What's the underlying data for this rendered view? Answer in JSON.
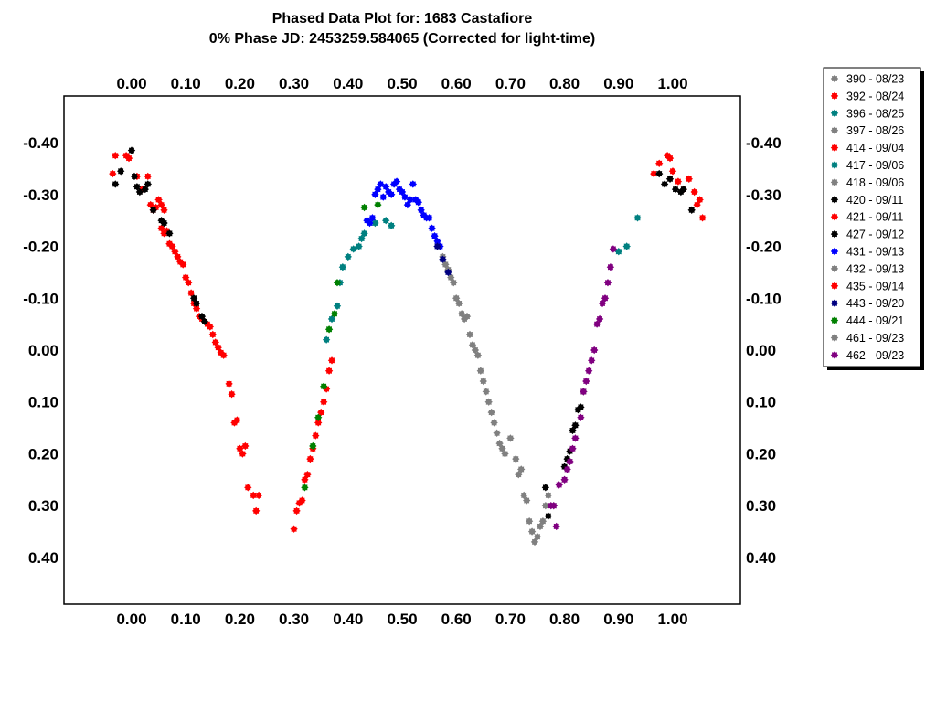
{
  "chart_data": {
    "type": "scatter",
    "title": "Phased Data Plot for: 1683 Castafiore",
    "subtitle": "0% Phase JD:  2453259.584065   (Corrected for light-time)",
    "xlabel": "",
    "ylabel": "",
    "xlim": [
      -0.125,
      1.125
    ],
    "ylim": [
      -0.49,
      0.49
    ],
    "y_inverted": true,
    "x_ticks": [
      0.0,
      0.1,
      0.2,
      0.3,
      0.4,
      0.5,
      0.6,
      0.7,
      0.8,
      0.9,
      1.0
    ],
    "x_tick_labels": [
      "0.00",
      "0.10",
      "0.20",
      "0.30",
      "0.40",
      "0.50",
      "0.60",
      "0.70",
      "0.80",
      "0.90",
      "1.00"
    ],
    "y_ticks": [
      -0.4,
      -0.3,
      -0.2,
      -0.1,
      0.0,
      0.1,
      0.2,
      0.3,
      0.4
    ],
    "y_tick_labels": [
      "-0.40",
      "-0.30",
      "-0.20",
      "-0.10",
      "0.00",
      "0.10",
      "0.20",
      "0.30",
      "0.40"
    ],
    "grid": false,
    "legend_position": "right",
    "series": [
      {
        "name": "390 - 08/23",
        "color": "#808080",
        "points": []
      },
      {
        "name": "392 - 08/24",
        "color": "#ff0000",
        "points": []
      },
      {
        "name": "396 - 08/25",
        "color": "#008080",
        "points": []
      },
      {
        "name": "397 - 08/26",
        "color": "#808080",
        "points": []
      },
      {
        "name": "414 - 09/04",
        "color": "#ff0000",
        "points": [
          [
            -0.035,
            -0.34
          ],
          [
            -0.03,
            -0.375
          ],
          [
            -0.01,
            -0.375
          ],
          [
            -0.005,
            -0.37
          ],
          [
            0.01,
            -0.335
          ],
          [
            0.02,
            -0.31
          ],
          [
            0.03,
            -0.335
          ],
          [
            0.035,
            -0.28
          ],
          [
            0.04,
            -0.27
          ],
          [
            0.045,
            -0.275
          ],
          [
            0.05,
            -0.29
          ],
          [
            0.055,
            -0.28
          ],
          [
            0.06,
            -0.27
          ],
          [
            0.055,
            -0.235
          ],
          [
            0.06,
            -0.225
          ],
          [
            0.065,
            -0.23
          ],
          [
            0.07,
            -0.205
          ],
          [
            0.075,
            -0.2
          ],
          [
            0.08,
            -0.19
          ],
          [
            0.085,
            -0.18
          ],
          [
            0.09,
            -0.17
          ],
          [
            0.095,
            -0.165
          ],
          [
            0.1,
            -0.14
          ],
          [
            0.105,
            -0.13
          ],
          [
            0.11,
            -0.11
          ],
          [
            0.115,
            -0.09
          ],
          [
            0.12,
            -0.08
          ],
          [
            0.125,
            -0.065
          ],
          [
            0.13,
            -0.06
          ],
          [
            0.14,
            -0.05
          ],
          [
            0.145,
            -0.045
          ],
          [
            0.15,
            -0.03
          ],
          [
            0.155,
            -0.015
          ],
          [
            0.16,
            -0.005
          ],
          [
            0.165,
            0.005
          ],
          [
            0.17,
            0.01
          ],
          [
            0.18,
            0.065
          ],
          [
            0.185,
            0.085
          ],
          [
            0.19,
            0.14
          ],
          [
            0.195,
            0.135
          ],
          [
            0.2,
            0.19
          ],
          [
            0.205,
            0.2
          ],
          [
            0.21,
            0.185
          ],
          [
            0.215,
            0.265
          ],
          [
            0.225,
            0.28
          ],
          [
            0.23,
            0.31
          ],
          [
            0.235,
            0.28
          ],
          [
            0.965,
            -0.34
          ],
          [
            0.975,
            -0.36
          ],
          [
            0.99,
            -0.375
          ],
          [
            0.995,
            -0.37
          ],
          [
            1.0,
            -0.345
          ],
          [
            1.01,
            -0.325
          ],
          [
            1.02,
            -0.31
          ],
          [
            1.03,
            -0.33
          ],
          [
            1.04,
            -0.305
          ],
          [
            1.045,
            -0.28
          ],
          [
            1.05,
            -0.29
          ],
          [
            1.055,
            -0.255
          ]
        ]
      },
      {
        "name": "417 - 09/06",
        "color": "#008080",
        "points": [
          [
            0.36,
            -0.02
          ],
          [
            0.37,
            -0.06
          ],
          [
            0.38,
            -0.085
          ],
          [
            0.385,
            -0.13
          ],
          [
            0.39,
            -0.16
          ],
          [
            0.4,
            -0.18
          ],
          [
            0.41,
            -0.195
          ],
          [
            0.42,
            -0.2
          ],
          [
            0.425,
            -0.215
          ],
          [
            0.43,
            -0.225
          ],
          [
            0.45,
            -0.245
          ],
          [
            0.47,
            -0.25
          ],
          [
            0.48,
            -0.24
          ],
          [
            0.935,
            -0.255
          ],
          [
            0.915,
            -0.2
          ],
          [
            0.9,
            -0.19
          ]
        ]
      },
      {
        "name": "418 - 09/06",
        "color": "#808080",
        "points": []
      },
      {
        "name": "420 - 09/11",
        "color": "#000000",
        "points": [
          [
            -0.03,
            -0.32
          ],
          [
            -0.02,
            -0.345
          ],
          [
            0.0,
            -0.385
          ],
          [
            0.005,
            -0.335
          ],
          [
            0.01,
            -0.315
          ],
          [
            0.015,
            -0.305
          ],
          [
            0.025,
            -0.31
          ],
          [
            0.03,
            -0.32
          ],
          [
            0.04,
            -0.27
          ],
          [
            0.055,
            -0.25
          ],
          [
            0.06,
            -0.245
          ],
          [
            0.07,
            -0.225
          ],
          [
            0.975,
            -0.34
          ],
          [
            0.985,
            -0.32
          ],
          [
            0.995,
            -0.33
          ],
          [
            1.005,
            -0.31
          ],
          [
            1.015,
            -0.305
          ],
          [
            1.02,
            -0.31
          ],
          [
            1.035,
            -0.27
          ],
          [
            0.765,
            0.265
          ],
          [
            0.77,
            0.32
          ]
        ]
      },
      {
        "name": "421 - 09/11",
        "color": "#ff0000",
        "points": [
          [
            0.3,
            0.345
          ],
          [
            0.305,
            0.31
          ],
          [
            0.31,
            0.295
          ],
          [
            0.315,
            0.29
          ],
          [
            0.32,
            0.25
          ],
          [
            0.325,
            0.24
          ],
          [
            0.33,
            0.21
          ],
          [
            0.335,
            0.19
          ],
          [
            0.34,
            0.165
          ],
          [
            0.345,
            0.14
          ],
          [
            0.35,
            0.12
          ],
          [
            0.355,
            0.1
          ],
          [
            0.36,
            0.075
          ],
          [
            0.365,
            0.04
          ],
          [
            0.37,
            0.02
          ]
        ]
      },
      {
        "name": "427 - 09/12",
        "color": "#000000",
        "points": [
          [
            0.115,
            -0.1
          ],
          [
            0.12,
            -0.09
          ],
          [
            0.13,
            -0.065
          ],
          [
            0.135,
            -0.055
          ],
          [
            0.8,
            0.225
          ],
          [
            0.805,
            0.21
          ],
          [
            0.81,
            0.195
          ],
          [
            0.815,
            0.155
          ],
          [
            0.82,
            0.145
          ],
          [
            0.825,
            0.115
          ],
          [
            0.83,
            0.11
          ],
          [
            0.835,
            0.08
          ]
        ]
      },
      {
        "name": "431 - 09/13",
        "color": "#0000ff",
        "points": [
          [
            0.435,
            -0.25
          ],
          [
            0.44,
            -0.245
          ],
          [
            0.445,
            -0.255
          ],
          [
            0.45,
            -0.3
          ],
          [
            0.455,
            -0.31
          ],
          [
            0.46,
            -0.32
          ],
          [
            0.465,
            -0.295
          ],
          [
            0.47,
            -0.315
          ],
          [
            0.475,
            -0.305
          ],
          [
            0.48,
            -0.3
          ],
          [
            0.485,
            -0.32
          ],
          [
            0.49,
            -0.325
          ],
          [
            0.495,
            -0.31
          ],
          [
            0.5,
            -0.305
          ],
          [
            0.505,
            -0.295
          ],
          [
            0.51,
            -0.28
          ],
          [
            0.515,
            -0.29
          ],
          [
            0.52,
            -0.32
          ],
          [
            0.525,
            -0.29
          ],
          [
            0.53,
            -0.285
          ],
          [
            0.535,
            -0.27
          ],
          [
            0.54,
            -0.26
          ],
          [
            0.545,
            -0.255
          ],
          [
            0.55,
            -0.255
          ],
          [
            0.555,
            -0.235
          ],
          [
            0.56,
            -0.22
          ],
          [
            0.565,
            -0.21
          ],
          [
            0.57,
            -0.2
          ]
        ]
      },
      {
        "name": "432 - 09/13",
        "color": "#808080",
        "points": [
          [
            0.575,
            -0.18
          ],
          [
            0.58,
            -0.165
          ],
          [
            0.585,
            -0.155
          ],
          [
            0.59,
            -0.14
          ],
          [
            0.595,
            -0.13
          ],
          [
            0.6,
            -0.1
          ],
          [
            0.605,
            -0.09
          ],
          [
            0.61,
            -0.07
          ],
          [
            0.615,
            -0.06
          ],
          [
            0.62,
            -0.065
          ],
          [
            0.625,
            -0.03
          ],
          [
            0.63,
            -0.01
          ],
          [
            0.635,
            0.0
          ],
          [
            0.64,
            0.01
          ],
          [
            0.645,
            0.04
          ],
          [
            0.65,
            0.06
          ],
          [
            0.655,
            0.08
          ],
          [
            0.66,
            0.1
          ],
          [
            0.665,
            0.12
          ],
          [
            0.67,
            0.14
          ],
          [
            0.675,
            0.16
          ],
          [
            0.68,
            0.18
          ],
          [
            0.685,
            0.19
          ],
          [
            0.69,
            0.2
          ],
          [
            0.7,
            0.17
          ],
          [
            0.71,
            0.21
          ],
          [
            0.715,
            0.24
          ],
          [
            0.72,
            0.23
          ],
          [
            0.725,
            0.28
          ],
          [
            0.73,
            0.29
          ],
          [
            0.735,
            0.33
          ],
          [
            0.74,
            0.35
          ],
          [
            0.745,
            0.37
          ],
          [
            0.75,
            0.36
          ],
          [
            0.755,
            0.34
          ],
          [
            0.76,
            0.33
          ],
          [
            0.765,
            0.3
          ],
          [
            0.77,
            0.28
          ],
          [
            0.78,
            0.3
          ]
        ]
      },
      {
        "name": "435 - 09/14",
        "color": "#ff0000",
        "points": []
      },
      {
        "name": "443 - 09/20",
        "color": "#000080",
        "points": [
          [
            0.565,
            -0.2
          ],
          [
            0.575,
            -0.175
          ],
          [
            0.585,
            -0.15
          ]
        ]
      },
      {
        "name": "444 - 09/21",
        "color": "#008000",
        "points": [
          [
            0.32,
            0.265
          ],
          [
            0.335,
            0.185
          ],
          [
            0.345,
            0.13
          ],
          [
            0.355,
            0.07
          ],
          [
            0.365,
            -0.04
          ],
          [
            0.375,
            -0.07
          ],
          [
            0.38,
            -0.13
          ],
          [
            0.43,
            -0.275
          ],
          [
            0.455,
            -0.28
          ]
        ]
      },
      {
        "name": "461 - 09/23",
        "color": "#808080",
        "points": []
      },
      {
        "name": "462 - 09/23",
        "color": "#800080",
        "points": [
          [
            0.775,
            0.3
          ],
          [
            0.78,
            0.3
          ],
          [
            0.785,
            0.34
          ],
          [
            0.79,
            0.26
          ],
          [
            0.8,
            0.25
          ],
          [
            0.805,
            0.23
          ],
          [
            0.81,
            0.215
          ],
          [
            0.815,
            0.19
          ],
          [
            0.82,
            0.17
          ],
          [
            0.83,
            0.13
          ],
          [
            0.835,
            0.08
          ],
          [
            0.84,
            0.06
          ],
          [
            0.845,
            0.04
          ],
          [
            0.85,
            0.02
          ],
          [
            0.855,
            0.0
          ],
          [
            0.86,
            -0.05
          ],
          [
            0.865,
            -0.06
          ],
          [
            0.87,
            -0.09
          ],
          [
            0.875,
            -0.1
          ],
          [
            0.88,
            -0.13
          ],
          [
            0.885,
            -0.16
          ],
          [
            0.89,
            -0.195
          ]
        ]
      }
    ]
  }
}
